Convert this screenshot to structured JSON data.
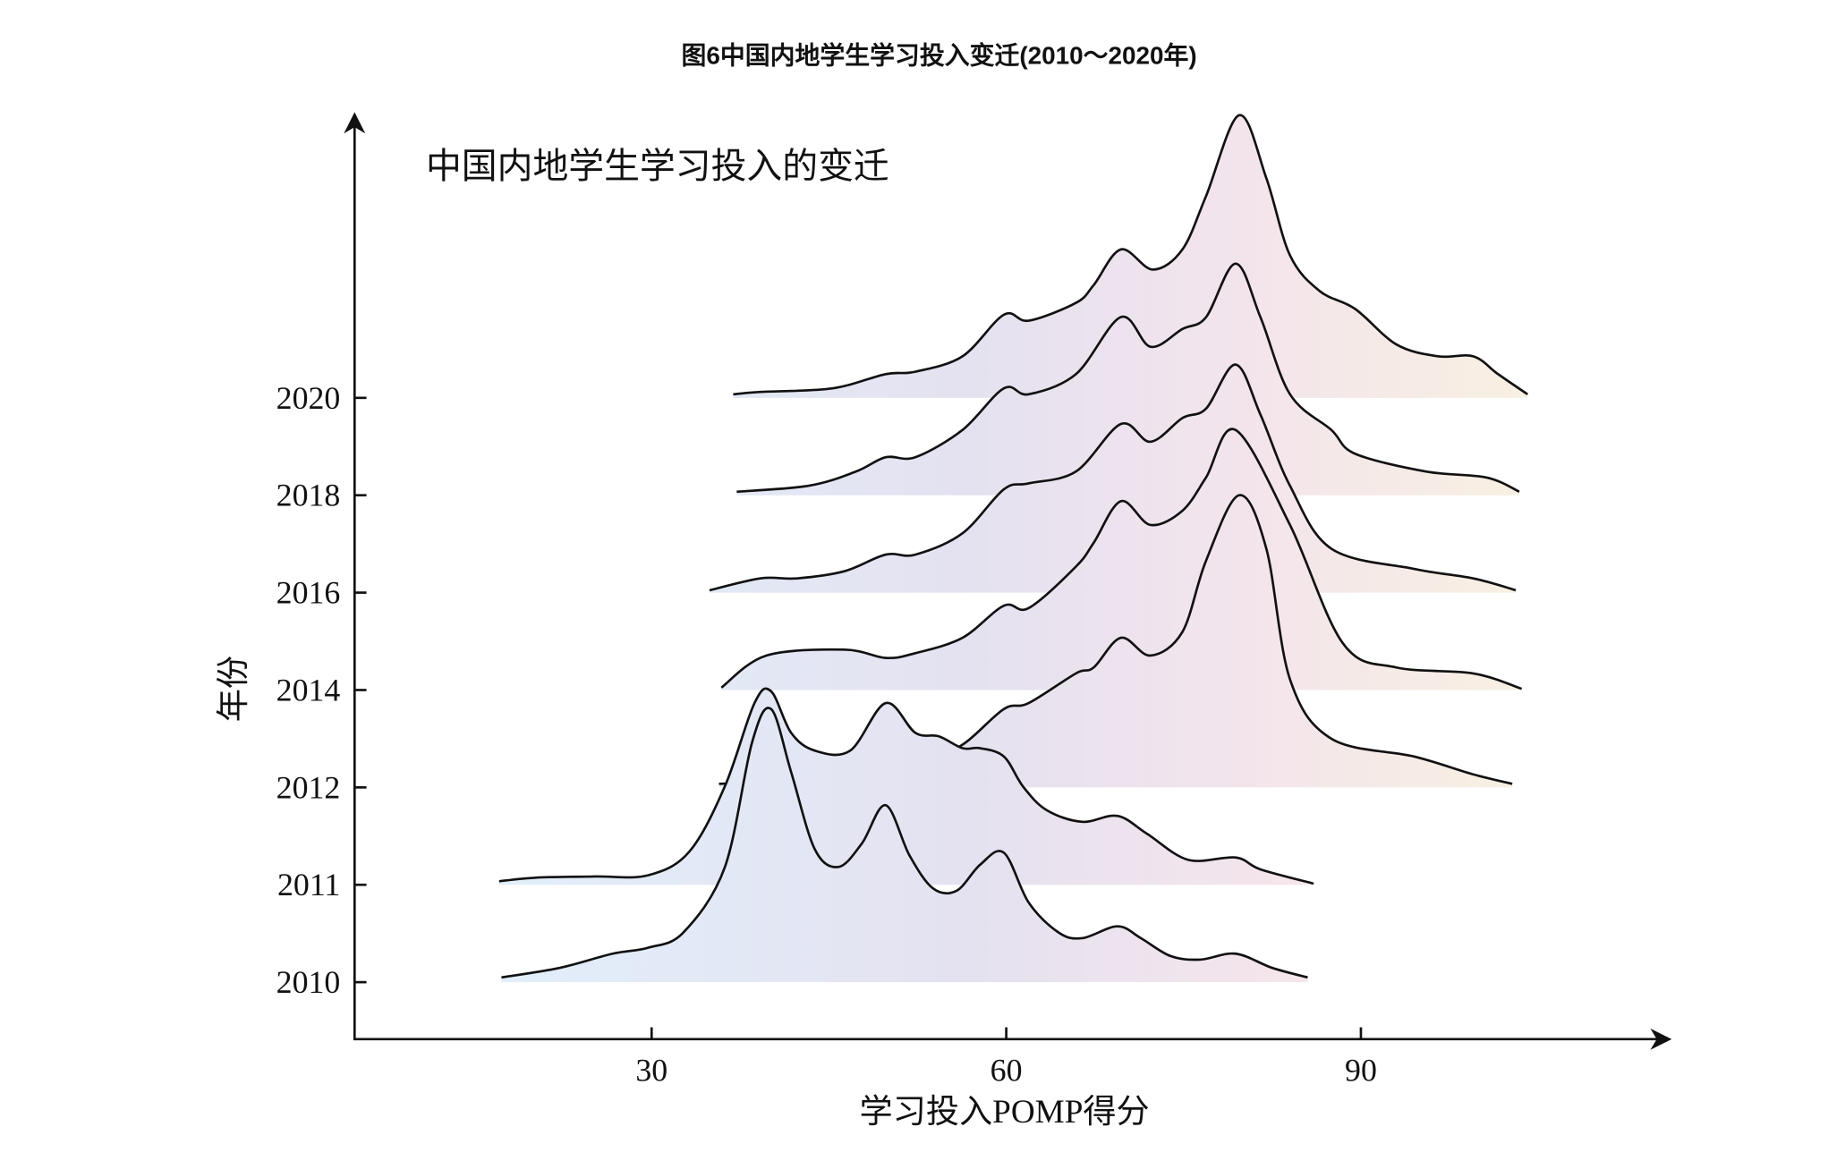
{
  "page_title": "图6中国内地学生学习投入变迁(2010～2020年)",
  "chart_data": {
    "type": "ridgeline",
    "title": "中国内地学生学习投入的变迁",
    "xlabel": "学习投入POMP得分",
    "ylabel": "年份",
    "xlim": [
      5,
      116
    ],
    "x_ticks": [
      "30",
      "60",
      "90"
    ],
    "x_tick_values": [
      30,
      60,
      90
    ],
    "y_ticks": [
      "2010",
      "2011",
      "2012",
      "2014",
      "2016",
      "2018",
      "2020"
    ],
    "grid": false,
    "fill_gradient": [
      "#e2eefb",
      "#e4e2f0",
      "#f3e4ec",
      "#f8f0e2"
    ],
    "line_color": "#111111",
    "series": [
      {
        "name": "2020",
        "points": [
          [
            36.9,
            0.03
          ],
          [
            39.2,
            0.05
          ],
          [
            45.3,
            0.08
          ],
          [
            49.8,
            0.2
          ],
          [
            52.3,
            0.22
          ],
          [
            56.3,
            0.35
          ],
          [
            59.8,
            0.7
          ],
          [
            61.9,
            0.65
          ],
          [
            65.9,
            0.8
          ],
          [
            67.4,
            0.95
          ],
          [
            69.7,
            1.25
          ],
          [
            72.4,
            1.08
          ],
          [
            74.9,
            1.25
          ],
          [
            76.9,
            1.7
          ],
          [
            79.7,
            2.38
          ],
          [
            82.0,
            1.85
          ],
          [
            84.0,
            1.2
          ],
          [
            86.5,
            0.9
          ],
          [
            89.5,
            0.75
          ],
          [
            93.0,
            0.45
          ],
          [
            96.5,
            0.35
          ],
          [
            99.5,
            0.35
          ],
          [
            101.6,
            0.2
          ],
          [
            104.1,
            0.03
          ]
        ]
      },
      {
        "name": "2018",
        "points": [
          [
            37.2,
            0.03
          ],
          [
            43.3,
            0.08
          ],
          [
            47.3,
            0.2
          ],
          [
            49.8,
            0.32
          ],
          [
            52.3,
            0.32
          ],
          [
            56.3,
            0.55
          ],
          [
            59.8,
            0.9
          ],
          [
            61.9,
            0.85
          ],
          [
            65.9,
            1.02
          ],
          [
            69.7,
            1.5
          ],
          [
            72.2,
            1.25
          ],
          [
            74.9,
            1.4
          ],
          [
            76.9,
            1.5
          ],
          [
            79.4,
            1.95
          ],
          [
            81.5,
            1.5
          ],
          [
            84.0,
            0.85
          ],
          [
            87.5,
            0.55
          ],
          [
            89.5,
            0.35
          ],
          [
            95.5,
            0.2
          ],
          [
            100.6,
            0.15
          ],
          [
            103.4,
            0.03
          ]
        ]
      },
      {
        "name": "2016",
        "points": [
          [
            34.9,
            0.02
          ],
          [
            39.2,
            0.12
          ],
          [
            42.3,
            0.12
          ],
          [
            46.3,
            0.18
          ],
          [
            49.8,
            0.32
          ],
          [
            52.3,
            0.32
          ],
          [
            56.3,
            0.5
          ],
          [
            59.8,
            0.87
          ],
          [
            61.9,
            0.92
          ],
          [
            65.9,
            1.02
          ],
          [
            69.7,
            1.42
          ],
          [
            72.2,
            1.27
          ],
          [
            74.9,
            1.47
          ],
          [
            76.9,
            1.55
          ],
          [
            79.4,
            1.92
          ],
          [
            81.5,
            1.5
          ],
          [
            84.0,
            0.9
          ],
          [
            87.5,
            0.37
          ],
          [
            94.5,
            0.2
          ],
          [
            99.5,
            0.12
          ],
          [
            103.1,
            0.02
          ]
        ]
      },
      {
        "name": "2014",
        "points": [
          [
            35.9,
            0.02
          ],
          [
            39.7,
            0.29
          ],
          [
            46.3,
            0.34
          ],
          [
            49.8,
            0.27
          ],
          [
            52.3,
            0.31
          ],
          [
            56.3,
            0.44
          ],
          [
            59.8,
            0.71
          ],
          [
            61.9,
            0.69
          ],
          [
            65.9,
            1.04
          ],
          [
            67.4,
            1.24
          ],
          [
            69.7,
            1.59
          ],
          [
            72.2,
            1.39
          ],
          [
            74.9,
            1.51
          ],
          [
            76.9,
            1.79
          ],
          [
            79.4,
            2.19
          ],
          [
            84.0,
            1.39
          ],
          [
            88.5,
            0.39
          ],
          [
            93.0,
            0.19
          ],
          [
            99.5,
            0.14
          ],
          [
            103.6,
            0.01
          ]
        ]
      },
      {
        "name": "2012",
        "points": [
          [
            35.7,
            0.03
          ],
          [
            39.2,
            0.06
          ],
          [
            53.3,
            0.26
          ],
          [
            56.3,
            0.36
          ],
          [
            59.8,
            0.66
          ],
          [
            61.9,
            0.71
          ],
          [
            65.9,
            0.96
          ],
          [
            67.4,
            1.01
          ],
          [
            69.7,
            1.26
          ],
          [
            72.2,
            1.11
          ],
          [
            74.9,
            1.31
          ],
          [
            76.9,
            1.91
          ],
          [
            79.7,
            2.46
          ],
          [
            82.0,
            2.01
          ],
          [
            84.0,
            0.91
          ],
          [
            87.5,
            0.41
          ],
          [
            94.5,
            0.26
          ],
          [
            99.5,
            0.11
          ],
          [
            102.8,
            0.03
          ]
        ]
      },
      {
        "name": "2011",
        "points": [
          [
            17.1,
            0.03
          ],
          [
            20.2,
            0.06
          ],
          [
            25.2,
            0.07
          ],
          [
            29.7,
            0.08
          ],
          [
            33.2,
            0.28
          ],
          [
            36.2,
            0.83
          ],
          [
            38.7,
            1.53
          ],
          [
            40.1,
            1.63
          ],
          [
            41.8,
            1.28
          ],
          [
            43.8,
            1.13
          ],
          [
            46.8,
            1.13
          ],
          [
            49.8,
            1.53
          ],
          [
            52.3,
            1.28
          ],
          [
            54.3,
            1.25
          ],
          [
            56.3,
            1.15
          ],
          [
            57.8,
            1.15
          ],
          [
            59.8,
            1.08
          ],
          [
            61.4,
            0.83
          ],
          [
            63.4,
            0.63
          ],
          [
            66.4,
            0.53
          ],
          [
            69.4,
            0.58
          ],
          [
            71.9,
            0.43
          ],
          [
            75.4,
            0.21
          ],
          [
            79.4,
            0.23
          ],
          [
            81.5,
            0.13
          ],
          [
            86.0,
            0.01
          ]
        ]
      },
      {
        "name": "2010",
        "points": [
          [
            17.3,
            0.04
          ],
          [
            22.2,
            0.12
          ],
          [
            26.7,
            0.24
          ],
          [
            29.7,
            0.29
          ],
          [
            32.7,
            0.42
          ],
          [
            36.2,
            0.97
          ],
          [
            38.5,
            2.02
          ],
          [
            40.1,
            2.3
          ],
          [
            41.8,
            1.77
          ],
          [
            43.8,
            1.12
          ],
          [
            45.8,
            0.97
          ],
          [
            47.8,
            1.17
          ],
          [
            49.8,
            1.49
          ],
          [
            51.8,
            1.07
          ],
          [
            53.8,
            0.79
          ],
          [
            55.8,
            0.77
          ],
          [
            57.8,
            0.99
          ],
          [
            59.8,
            1.09
          ],
          [
            61.9,
            0.67
          ],
          [
            64.4,
            0.42
          ],
          [
            66.4,
            0.37
          ],
          [
            69.4,
            0.47
          ],
          [
            71.4,
            0.37
          ],
          [
            73.9,
            0.22
          ],
          [
            76.4,
            0.19
          ],
          [
            79.4,
            0.24
          ],
          [
            82.5,
            0.12
          ],
          [
            85.5,
            0.04
          ]
        ]
      }
    ]
  }
}
